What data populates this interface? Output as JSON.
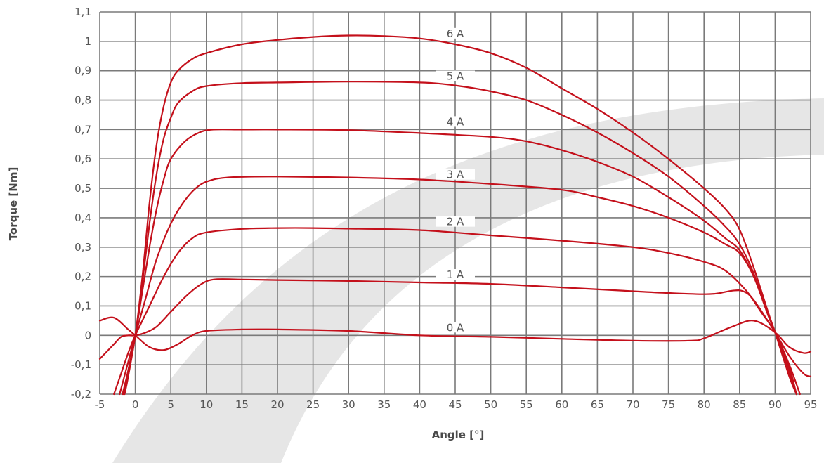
{
  "chart_data": {
    "type": "line",
    "title": "",
    "xlabel": "Angle [°]",
    "ylabel": "Torque [Nm]",
    "xlim": [
      -5,
      95
    ],
    "ylim": [
      -0.2,
      1.1
    ],
    "x_ticks": [
      -5,
      0,
      5,
      10,
      15,
      20,
      25,
      30,
      35,
      40,
      45,
      50,
      55,
      60,
      65,
      70,
      75,
      80,
      85,
      90,
      95
    ],
    "y_ticks": [
      -0.2,
      -0.1,
      0,
      0.1,
      0.2,
      0.3,
      0.4,
      0.5,
      0.6,
      0.7,
      0.8,
      0.9,
      1,
      1.1
    ],
    "x_tick_labels": [
      "-5",
      "0",
      "5",
      "10",
      "15",
      "20",
      "25",
      "30",
      "35",
      "40",
      "45",
      "50",
      "55",
      "60",
      "65",
      "70",
      "75",
      "80",
      "85",
      "90",
      "95"
    ],
    "y_tick_labels": [
      "-0,2",
      "-0,1",
      "0",
      "0,1",
      "0,2",
      "0,3",
      "0,4",
      "0,5",
      "0,6",
      "0,7",
      "0,8",
      "0,9",
      "1",
      "1,1"
    ],
    "grid": true,
    "colors": {
      "series": "#c4101b",
      "grid": "#7a7a7a",
      "text": "#555555",
      "background_arc": "#e6e6e6"
    },
    "series": [
      {
        "name": "0 A",
        "label_at": [
          45,
          0
        ],
        "x": [
          -5,
          -3,
          -1,
          0,
          2,
          4,
          6,
          8,
          10,
          15,
          20,
          30,
          40,
          50,
          60,
          70,
          78,
          80,
          84,
          87,
          90,
          92,
          94,
          95
        ],
        "y": [
          0.05,
          0.06,
          0.02,
          0,
          -0.04,
          -0.05,
          -0.03,
          0.0,
          0.015,
          0.02,
          0.02,
          0.015,
          0.0,
          -0.005,
          -0.012,
          -0.018,
          -0.018,
          -0.01,
          0.03,
          0.05,
          0.01,
          -0.04,
          -0.06,
          -0.055
        ]
      },
      {
        "name": "1 A",
        "label_at": [
          45,
          0.18
        ],
        "x": [
          -5,
          -3,
          -2,
          -1,
          0,
          1.5,
          3,
          5,
          7,
          9,
          11,
          15,
          20,
          30,
          40,
          50,
          60,
          70,
          75,
          80,
          82,
          84,
          85.5,
          87,
          90,
          92,
          94,
          95
        ],
        "y": [
          -0.08,
          -0.03,
          -0.005,
          0.0,
          0,
          0.01,
          0.03,
          0.08,
          0.13,
          0.17,
          0.19,
          0.19,
          0.188,
          0.185,
          0.18,
          0.175,
          0.163,
          0.15,
          0.144,
          0.14,
          0.143,
          0.152,
          0.15,
          0.12,
          0.01,
          -0.07,
          -0.13,
          -0.14
        ]
      },
      {
        "name": "2 A",
        "label_at": [
          45,
          0.36
        ],
        "x": [
          -3,
          -2,
          -1,
          0,
          2,
          4,
          6,
          8,
          10,
          15,
          20,
          25,
          30,
          40,
          50,
          60,
          70,
          75,
          80,
          83,
          86,
          88,
          90,
          92,
          93.5
        ],
        "y": [
          -0.2,
          -0.13,
          -0.06,
          0,
          0.1,
          0.2,
          0.28,
          0.33,
          0.35,
          0.362,
          0.365,
          0.365,
          0.363,
          0.358,
          0.34,
          0.322,
          0.3,
          0.28,
          0.25,
          0.22,
          0.15,
          0.08,
          0.01,
          -0.1,
          -0.2
        ]
      },
      {
        "name": "3 A",
        "label_at": [
          45,
          0.52
        ],
        "x": [
          -2.2,
          -1,
          0,
          1.5,
          3,
          5,
          7,
          9,
          11,
          13,
          15,
          20,
          30,
          40,
          50,
          60,
          65,
          70,
          75,
          80,
          83,
          85,
          87,
          89,
          90,
          92,
          93
        ],
        "y": [
          -0.2,
          -0.09,
          0,
          0.13,
          0.26,
          0.38,
          0.46,
          0.51,
          0.53,
          0.537,
          0.539,
          0.54,
          0.537,
          0.53,
          0.515,
          0.495,
          0.47,
          0.44,
          0.4,
          0.35,
          0.31,
          0.28,
          0.2,
          0.07,
          0.01,
          -0.11,
          -0.2
        ]
      },
      {
        "name": "4 A",
        "label_at": [
          45,
          0.7
        ],
        "x": [
          -1.8,
          -1,
          0,
          1,
          2,
          3,
          4,
          5,
          7,
          9,
          11,
          15,
          20,
          30,
          40,
          50,
          55,
          60,
          65,
          70,
          75,
          80,
          83,
          85,
          87,
          89,
          90,
          92,
          93
        ],
        "y": [
          -0.2,
          -0.12,
          0,
          0.15,
          0.3,
          0.43,
          0.53,
          0.6,
          0.66,
          0.69,
          0.7,
          0.7,
          0.7,
          0.698,
          0.688,
          0.675,
          0.66,
          0.63,
          0.59,
          0.54,
          0.47,
          0.39,
          0.33,
          0.29,
          0.2,
          0.07,
          0.01,
          -0.12,
          -0.2
        ]
      },
      {
        "name": "5 A",
        "label_at": [
          45,
          0.855
        ],
        "x": [
          -1.7,
          -1,
          0,
          1,
          2,
          3,
          4,
          5,
          6,
          8,
          10,
          15,
          20,
          30,
          40,
          45,
          50,
          55,
          60,
          65,
          70,
          75,
          80,
          83,
          85,
          87,
          89,
          90,
          92,
          93
        ],
        "y": [
          -0.2,
          -0.12,
          0,
          0.18,
          0.38,
          0.55,
          0.67,
          0.74,
          0.79,
          0.83,
          0.848,
          0.858,
          0.86,
          0.863,
          0.86,
          0.85,
          0.83,
          0.8,
          0.75,
          0.69,
          0.62,
          0.54,
          0.44,
          0.37,
          0.31,
          0.21,
          0.07,
          0.01,
          -0.13,
          -0.2
        ]
      },
      {
        "name": "6 A",
        "label_at": [
          45,
          1.0
        ],
        "x": [
          -1.5,
          -1,
          0,
          1,
          2,
          3,
          4,
          5,
          6,
          8,
          10,
          15,
          20,
          25,
          30,
          35,
          40,
          45,
          50,
          55,
          60,
          65,
          70,
          75,
          80,
          83,
          85,
          87,
          89,
          90,
          92,
          93
        ],
        "y": [
          -0.2,
          -0.14,
          0,
          0.2,
          0.45,
          0.65,
          0.78,
          0.86,
          0.9,
          0.94,
          0.96,
          0.99,
          1.005,
          1.015,
          1.02,
          1.018,
          1.01,
          0.99,
          0.96,
          0.91,
          0.84,
          0.77,
          0.69,
          0.6,
          0.5,
          0.43,
          0.36,
          0.23,
          0.08,
          0.01,
          -0.14,
          -0.2
        ]
      }
    ]
  }
}
